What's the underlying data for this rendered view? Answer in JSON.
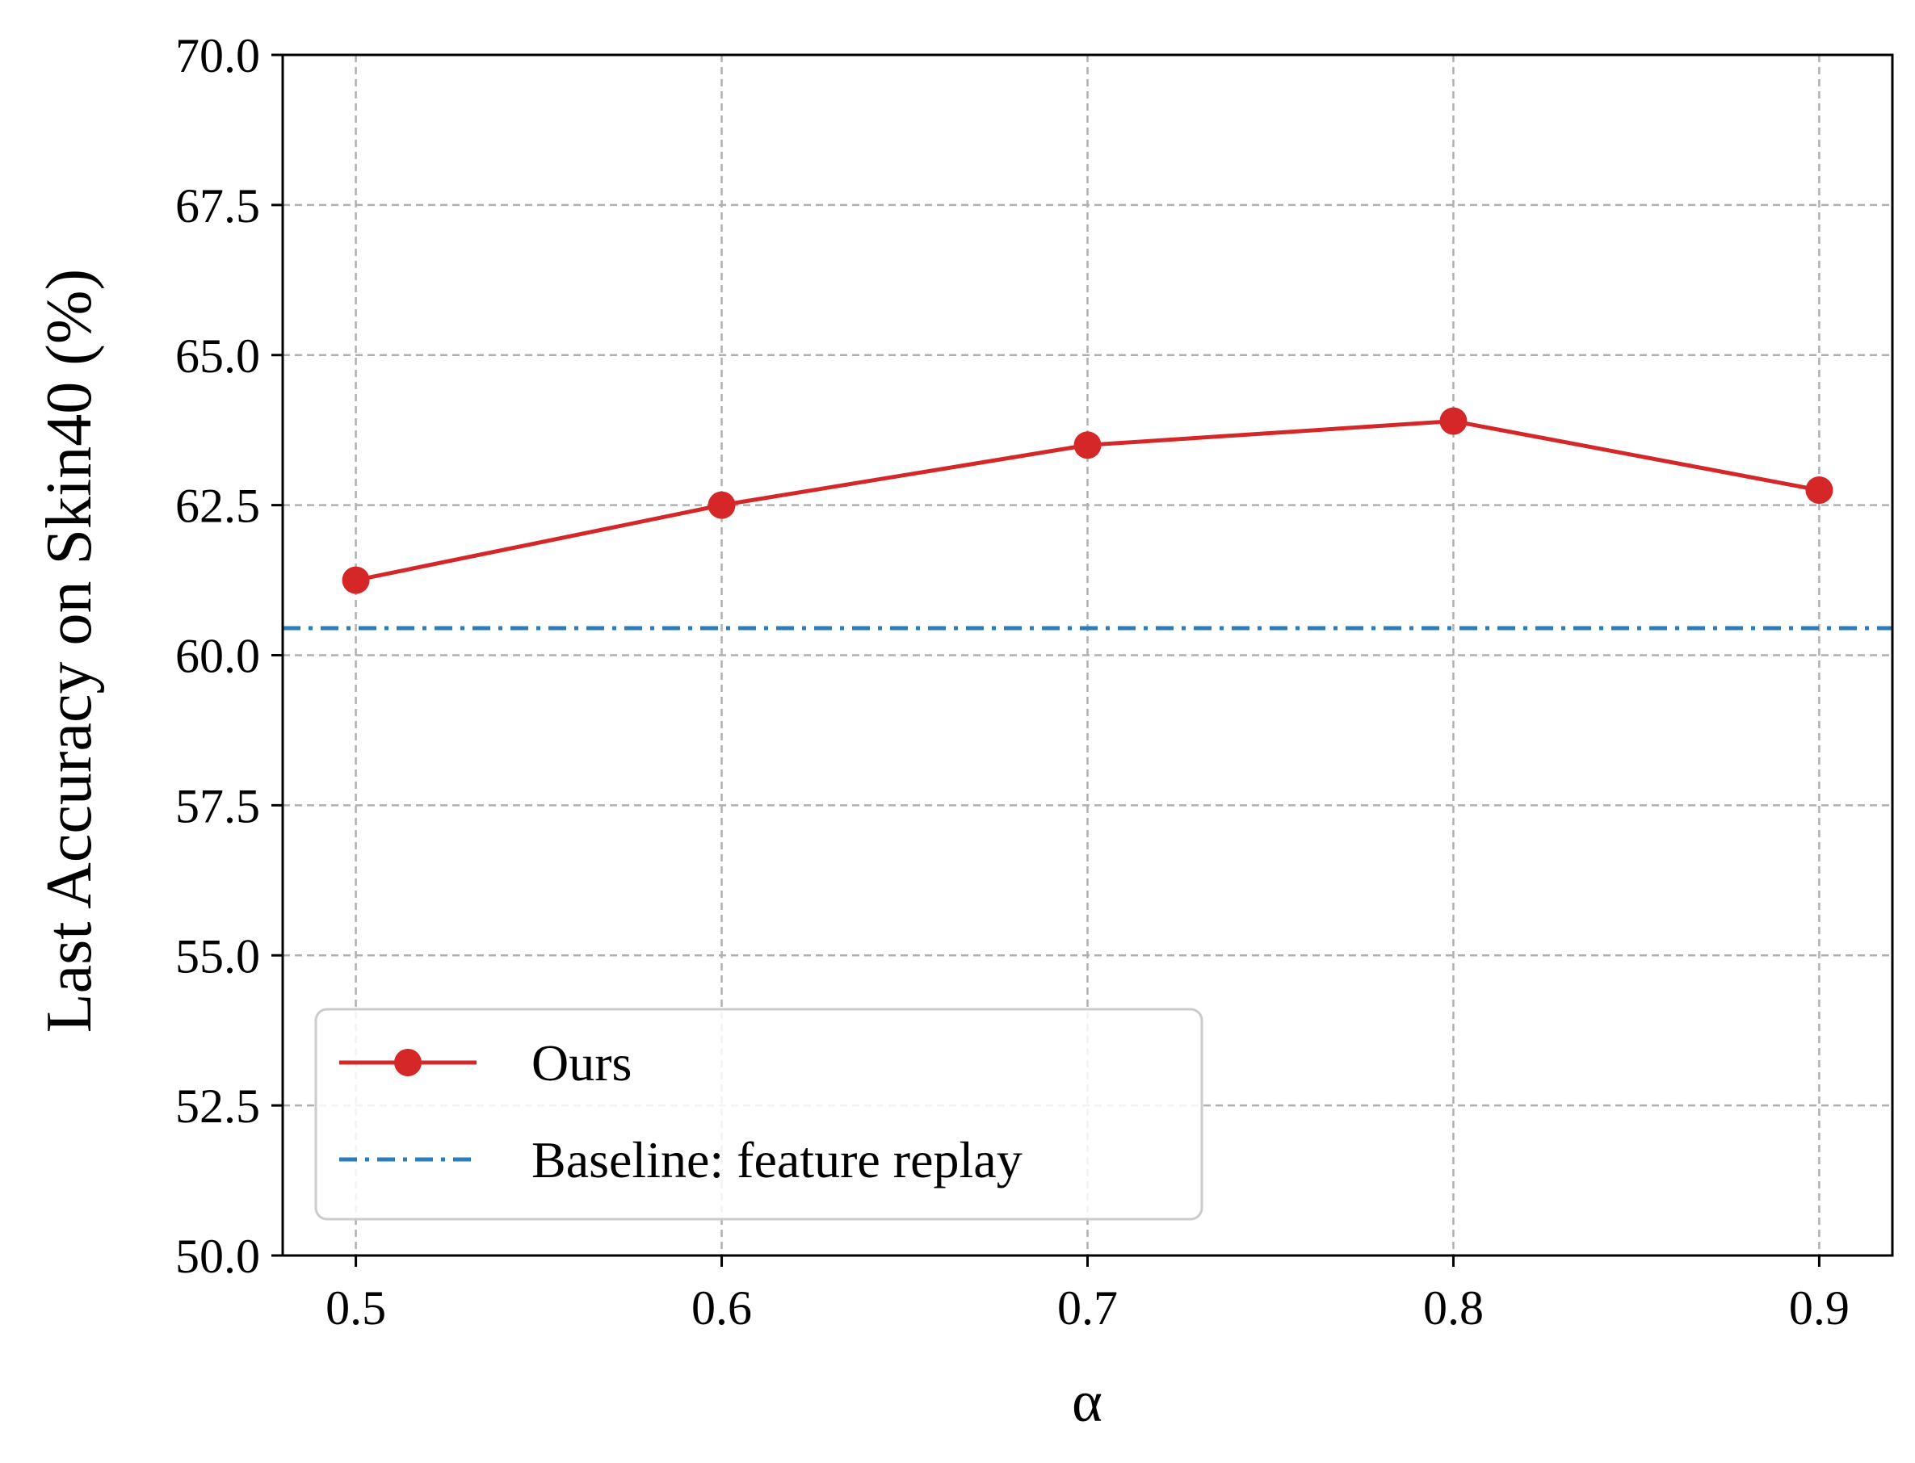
{
  "chart_data": {
    "type": "line",
    "title": "",
    "xlabel": "α",
    "ylabel": "Last Accuracy on Skin40 (%)",
    "xlim": [
      0.48,
      0.92
    ],
    "ylim": [
      50.0,
      70.0
    ],
    "xticks": [
      0.5,
      0.6,
      0.7,
      0.8,
      0.9
    ],
    "xtick_labels": [
      "0.5",
      "0.6",
      "0.7",
      "0.8",
      "0.9"
    ],
    "yticks": [
      50.0,
      52.5,
      55.0,
      57.5,
      60.0,
      62.5,
      65.0,
      67.5,
      70.0
    ],
    "ytick_labels": [
      "50.0",
      "52.5",
      "55.0",
      "57.5",
      "60.0",
      "62.5",
      "65.0",
      "67.5",
      "70.0"
    ],
    "grid": true,
    "legend_position": "lower-left",
    "series": [
      {
        "name": "Ours",
        "style": "solid-with-circle-markers",
        "color": "#d62728",
        "x": [
          0.5,
          0.6,
          0.7,
          0.8,
          0.9
        ],
        "y": [
          61.25,
          62.5,
          63.5,
          63.9,
          62.75
        ]
      },
      {
        "name": "Baseline: feature replay",
        "style": "dash-dot-horizontal",
        "color": "#2b7bbd",
        "y": 60.45
      }
    ]
  }
}
